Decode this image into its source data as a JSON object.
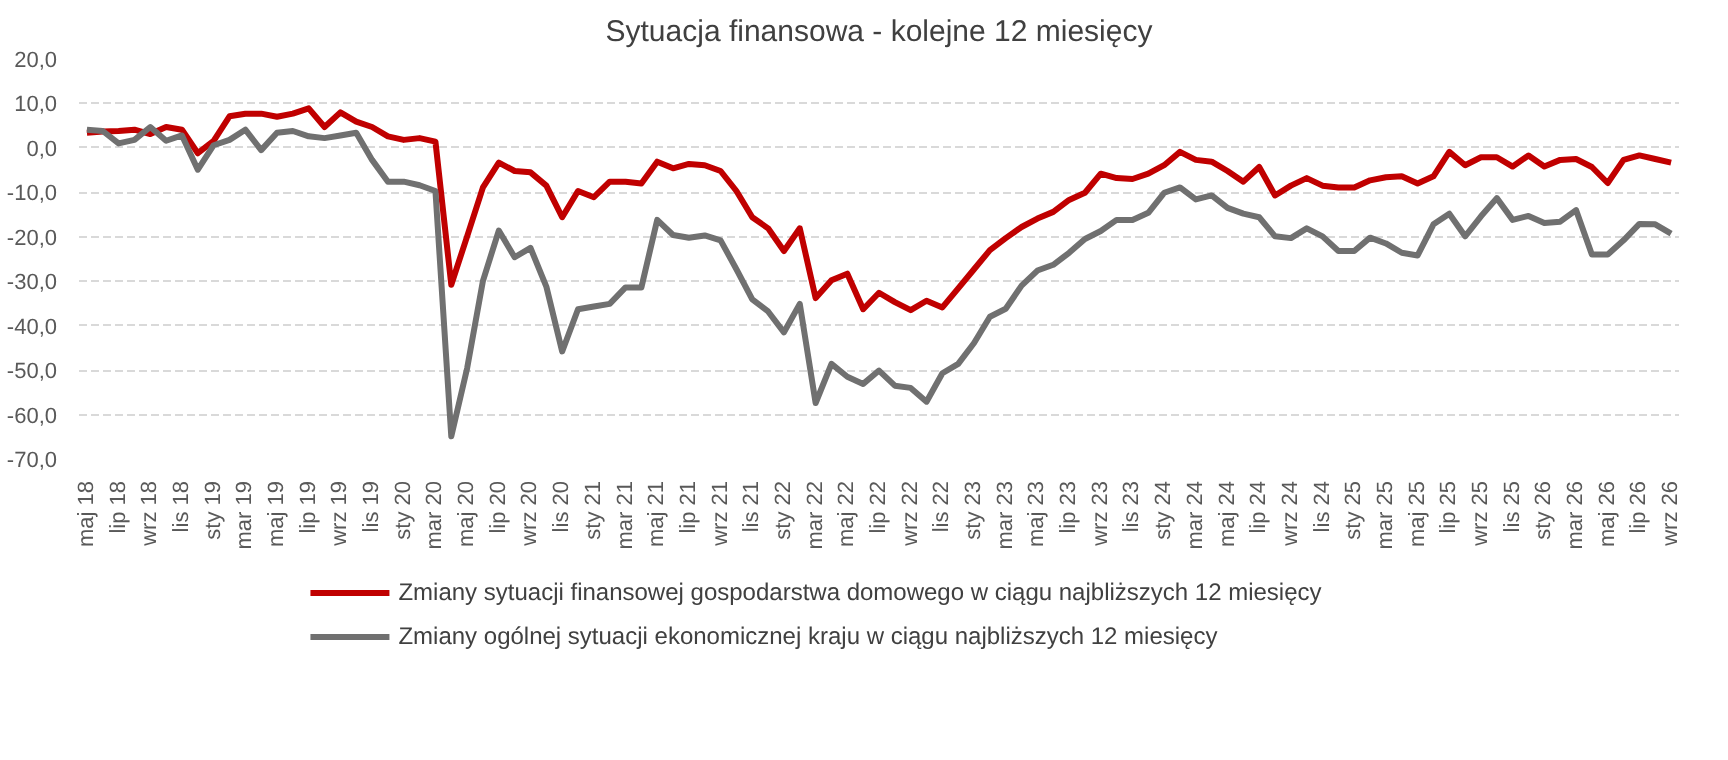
{
  "chart_data": {
    "type": "line",
    "title": "Sytuacja finansowa - kolejne 12 miesięcy",
    "categories": [
      "maj 18",
      null,
      "lip 18",
      null,
      "wrz 18",
      null,
      "lis 18",
      null,
      "sty 19",
      null,
      "mar 19",
      null,
      "maj 19",
      null,
      "lip 19",
      null,
      "wrz 19",
      null,
      "lis 19",
      null,
      "sty 20",
      null,
      "mar 20",
      null,
      "maj 20",
      null,
      "lip 20",
      null,
      "wrz 20",
      null,
      "lis 20",
      null,
      "sty 21",
      null,
      "mar 21",
      null,
      "maj 21",
      null,
      "lip 21",
      null,
      "wrz 21",
      null,
      "lis 21",
      null,
      "sty 22",
      null,
      "mar 22",
      null,
      "maj 22",
      null,
      "lip 22",
      null,
      "wrz 22",
      null,
      "lis 22",
      null,
      "sty 23",
      null,
      "mar 23",
      null,
      "maj 23",
      null,
      "lip 23",
      null,
      "wrz 23",
      null,
      "lis 23",
      null,
      "sty 24",
      null,
      "mar 24",
      null,
      "maj 24",
      null,
      "lip 24",
      null,
      "wrz 24",
      null,
      "lis 24",
      null,
      "sty 25",
      null,
      "mar 25",
      null,
      "maj 25",
      null,
      "lip 25",
      null,
      "wrz 25",
      null,
      "lis 25",
      null,
      "sty 26",
      null,
      "mar 26",
      null,
      "maj 26",
      null,
      "lip 26",
      null,
      "wrz 26"
    ],
    "series": [
      {
        "name": "Zmiany sytuacji finansowej gospodarstwa domowego w ciągu najbliższych 12 miesięcy",
        "color": "#c00000",
        "values": [
          3.4,
          3.7,
          3.8,
          4.1,
          3.1,
          4.7,
          4.1,
          -1.2,
          1.6,
          7.1,
          7.7,
          7.7,
          7.0,
          7.7,
          8.9,
          4.7,
          8.0,
          5.9,
          4.7,
          2.6,
          1.8,
          2.2,
          1.4,
          -30.8,
          -19.9,
          -8.9,
          -3.3,
          -5.2,
          -5.5,
          -8.5,
          -15.6,
          -9.7,
          -11.1,
          -7.6,
          -7.6,
          -8.0,
          -3.1,
          -4.6,
          -3.6,
          -3.9,
          -5.2,
          -9.7,
          -15.6,
          -18.1,
          -23.2,
          -18.1,
          -33.8,
          -29.8,
          -28.3,
          -36.3,
          -32.6,
          -34.7,
          -36.5,
          -34.4,
          -35.9,
          -31.6,
          -27.3,
          -23.0,
          -20.3,
          -17.8,
          -15.9,
          -14.4,
          -11.7,
          -10.1,
          -5.8,
          -6.8,
          -7.0,
          -5.8,
          -3.9,
          -0.9,
          -2.7,
          -3.1,
          -5.2,
          -7.6,
          -4.3,
          -10.7,
          -8.5,
          -6.8,
          -8.5,
          -8.9,
          -8.9,
          -7.3,
          -6.6,
          -6.4,
          -8.0,
          -6.4,
          -0.9,
          -3.9,
          -2.1,
          -2.1,
          -4.2,
          -1.7,
          -4.2,
          -2.7,
          -2.5,
          -4.3,
          -7.9,
          -2.7,
          -1.7,
          -2.5,
          -3.3
        ]
      },
      {
        "name": "Zmiany ogólnej sytuacji ekonomicznej kraju w ciągu najbliższych 12 miesięcy",
        "color": "#707070",
        "values": [
          4.1,
          3.8,
          1.0,
          1.8,
          4.7,
          1.6,
          2.8,
          -4.9,
          0.6,
          1.8,
          4.1,
          -0.5,
          3.4,
          3.8,
          2.6,
          2.2,
          2.8,
          3.4,
          -2.7,
          -7.6,
          -7.6,
          -8.4,
          -9.7,
          -64.9,
          -49.6,
          -29.9,
          -18.6,
          -24.6,
          -22.5,
          -31.2,
          -45.8,
          -36.3,
          -35.7,
          -35.1,
          -31.4,
          -31.4,
          -16.2,
          -19.6,
          -20.2,
          -19.7,
          -20.8,
          -27.3,
          -34.1,
          -36.8,
          -41.5,
          -35.1,
          -57.4,
          -48.6,
          -51.5,
          -53.1,
          -50.1,
          -53.5,
          -54.0,
          -57.1,
          -50.7,
          -48.6,
          -43.9,
          -38.0,
          -36.2,
          -31.0,
          -27.6,
          -26.3,
          -23.6,
          -20.5,
          -18.7,
          -16.2,
          -16.2,
          -14.6,
          -10.1,
          -8.9,
          -11.6,
          -10.7,
          -13.5,
          -14.8,
          -15.6,
          -19.9,
          -20.3,
          -18.1,
          -19.9,
          -23.2,
          -23.2,
          -20.2,
          -21.5,
          -23.6,
          -24.2,
          -17.2,
          -14.8,
          -19.9,
          -15.4,
          -11.3,
          -16.2,
          -15.3,
          -16.9,
          -16.6,
          -14.0,
          -24.0,
          -24.0,
          -20.8,
          -17.1,
          -17.2,
          -19.3
        ]
      }
    ],
    "ylim": [
      -70,
      20
    ],
    "yticks": [
      {
        "value": -70,
        "label": "-70,0"
      },
      {
        "value": -60,
        "label": "-60,0"
      },
      {
        "value": -50,
        "label": "-50,0"
      },
      {
        "value": -40,
        "label": "-40,0"
      },
      {
        "value": -30,
        "label": "-30,0"
      },
      {
        "value": -20,
        "label": "-20,0"
      },
      {
        "value": -10,
        "label": "-10,0"
      },
      {
        "value": 0,
        "label": "0,0"
      },
      {
        "value": 10,
        "label": "10,0"
      },
      {
        "value": 20,
        "label": "20,0"
      }
    ],
    "grid": "y",
    "legend": "bottom",
    "marker": "none",
    "line_style": "solid"
  }
}
